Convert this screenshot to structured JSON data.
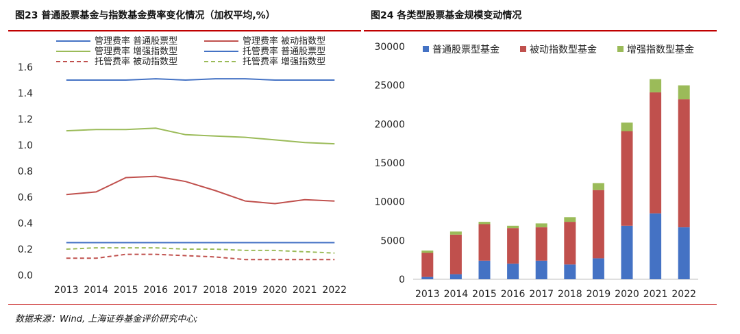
{
  "left_title": "图23 普通股票基金与指数基金费率变化情况（加权平均,%）",
  "right_title": "图24 各类型股票基金规模变动情况",
  "source": "数据来源：Wind, 上海证券基金评价研究中心;",
  "chart_data": [
    {
      "type": "line",
      "title": "图23 普通股票基金与指数基金费率变化情况（加权平均,%）",
      "x": [
        "2013",
        "2014",
        "2015",
        "2016",
        "2017",
        "2018",
        "2019",
        "2020",
        "2021",
        "2022"
      ],
      "ylim": [
        0,
        1.6
      ],
      "yticks": [
        "0.0",
        "0.2",
        "0.4",
        "0.6",
        "0.8",
        "1.0",
        "1.2",
        "1.4",
        "1.6"
      ],
      "grid": false,
      "legend": "top",
      "series": [
        {
          "name": "管理费率 普通股票型",
          "color": "#4472c4",
          "dash": false,
          "values": [
            1.5,
            1.5,
            1.5,
            1.51,
            1.5,
            1.51,
            1.51,
            1.5,
            1.5,
            1.5
          ]
        },
        {
          "name": "管理费率 被动指数型",
          "color": "#c0504d",
          "dash": false,
          "values": [
            0.62,
            0.64,
            0.75,
            0.76,
            0.72,
            0.65,
            0.57,
            0.55,
            0.58,
            0.57
          ]
        },
        {
          "name": "管理费率 增强指数型",
          "color": "#9bbb59",
          "dash": false,
          "values": [
            1.11,
            1.12,
            1.12,
            1.13,
            1.08,
            1.07,
            1.06,
            1.04,
            1.02,
            1.01
          ]
        },
        {
          "name": "托管费率 普通股票型",
          "color": "#4472c4",
          "dash": false,
          "values": [
            0.25,
            0.25,
            0.25,
            0.25,
            0.25,
            0.25,
            0.25,
            0.25,
            0.25,
            0.25
          ]
        },
        {
          "name": "托管费率 被动指数型",
          "color": "#c0504d",
          "dash": true,
          "values": [
            0.13,
            0.13,
            0.16,
            0.16,
            0.15,
            0.14,
            0.12,
            0.12,
            0.12,
            0.12
          ]
        },
        {
          "name": "托管费率 增强指数型",
          "color": "#9bbb59",
          "dash": true,
          "values": [
            0.2,
            0.21,
            0.21,
            0.21,
            0.2,
            0.2,
            0.19,
            0.19,
            0.18,
            0.17
          ]
        }
      ]
    },
    {
      "type": "bar",
      "stacked": true,
      "title": "图24 各类型股票基金规模变动情况",
      "categories": [
        "2013",
        "2014",
        "2015",
        "2016",
        "2017",
        "2018",
        "2019",
        "2020",
        "2021",
        "2022"
      ],
      "ylim": [
        0,
        30000
      ],
      "yticks": [
        "0",
        "5000",
        "10000",
        "15000",
        "20000",
        "25000",
        "30000"
      ],
      "grid": false,
      "legend": "top",
      "series": [
        {
          "name": "普通股票型基金",
          "color": "#4472c4",
          "values": [
            300,
            650,
            2400,
            2000,
            2400,
            1900,
            2700,
            6900,
            8500,
            6700
          ]
        },
        {
          "name": "被动指数型基金",
          "color": "#c0504d",
          "values": [
            3100,
            5100,
            4700,
            4600,
            4300,
            5500,
            8800,
            12200,
            15600,
            16500
          ]
        },
        {
          "name": "增强指数型基金",
          "color": "#9bbb59",
          "values": [
            300,
            400,
            300,
            300,
            500,
            600,
            900,
            1100,
            1700,
            1800
          ]
        }
      ]
    }
  ]
}
